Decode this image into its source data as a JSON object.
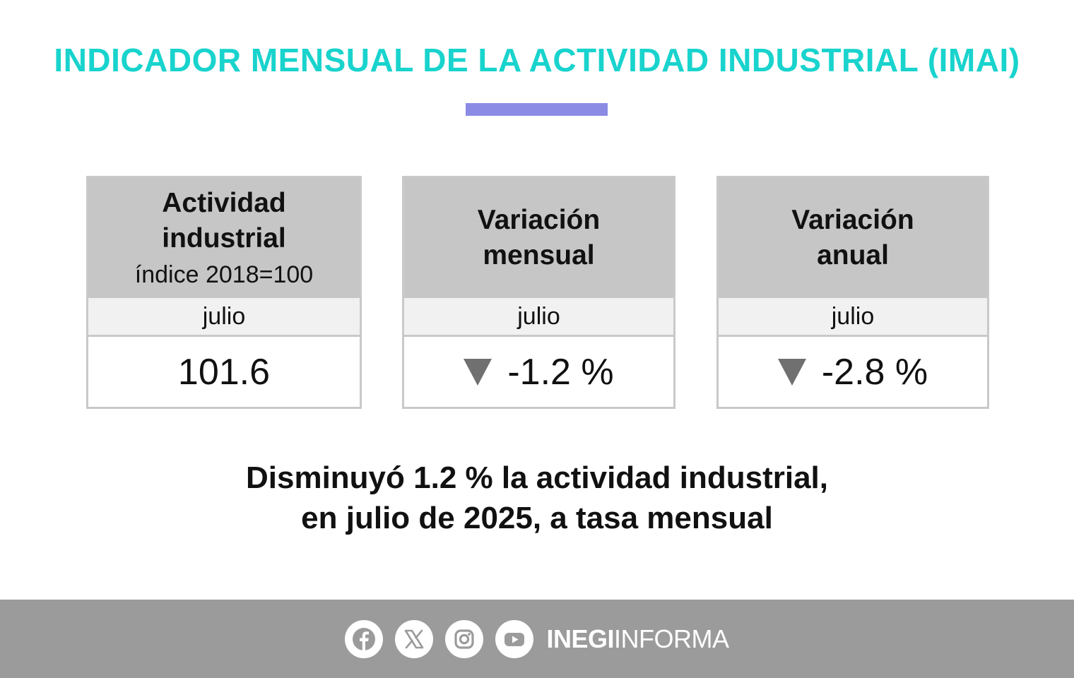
{
  "colors": {
    "title": "#19d3cd",
    "accent_bar": "#8b8be6",
    "card_header": "#c6c6c6",
    "footer": "#9b9b9b",
    "down_arrow": "#707070"
  },
  "header": {
    "title": "INDICADOR MENSUAL DE LA ACTIVIDAD INDUSTRIAL (IMAI)"
  },
  "cards": [
    {
      "title_line1": "Actividad",
      "title_line2": "industrial",
      "subtitle": "índice 2018=100",
      "period": "julio",
      "value": "101.6"
    },
    {
      "title_line1": "Variación",
      "title_line2": "mensual",
      "period": "julio",
      "value": "-1.2 %",
      "trend_icon": "down-triangle-icon"
    },
    {
      "title_line1": "Variación",
      "title_line2": "anual",
      "period": "julio",
      "value": "-2.8 %",
      "trend_icon": "down-triangle-icon"
    }
  ],
  "headline": {
    "line1": "Disminuyó 1.2 % la actividad industrial,",
    "line2": "en julio de 2025, a tasa mensual"
  },
  "footer": {
    "social_icons": [
      "facebook-icon",
      "x-icon",
      "instagram-icon",
      "youtube-icon"
    ],
    "brand_bold": "INEGI",
    "brand_regular": "INFORMA"
  }
}
